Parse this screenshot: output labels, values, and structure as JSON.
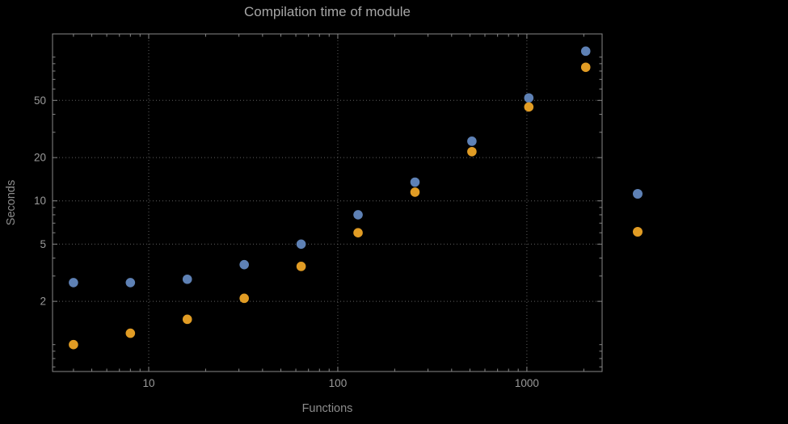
{
  "background": "#000000",
  "chart_data": {
    "type": "scatter",
    "title": "Compilation time of module",
    "xlabel": "Functions",
    "ylabel": "Seconds",
    "x_scale": "log",
    "y_scale": "log",
    "grid": "dotted",
    "frame": true,
    "x_ticks": [
      10,
      100,
      1000
    ],
    "y_ticks": [
      2,
      5,
      10,
      20,
      50
    ],
    "xlim": [
      3.1,
      2500
    ],
    "ylim": [
      0.65,
      145
    ],
    "series": [
      {
        "name": "blue",
        "color": "#5E81B5",
        "x": [
          4,
          8,
          16,
          32,
          64,
          128,
          256,
          512,
          1024,
          2048
        ],
        "y": [
          2.7,
          2.7,
          2.85,
          3.6,
          5.0,
          8.0,
          13.5,
          26,
          52,
          110
        ]
      },
      {
        "name": "orange",
        "color": "#E19C24",
        "x": [
          4,
          8,
          16,
          32,
          64,
          128,
          256,
          512,
          1024,
          2048
        ],
        "y": [
          1.0,
          1.2,
          1.5,
          2.1,
          3.5,
          6.0,
          11.5,
          22,
          45,
          85
        ]
      }
    ],
    "legend": {
      "position": "right-outside",
      "entries": [
        {
          "name": "blue",
          "color": "#5E81B5"
        },
        {
          "name": "orange",
          "color": "#E19C24"
        }
      ]
    }
  }
}
